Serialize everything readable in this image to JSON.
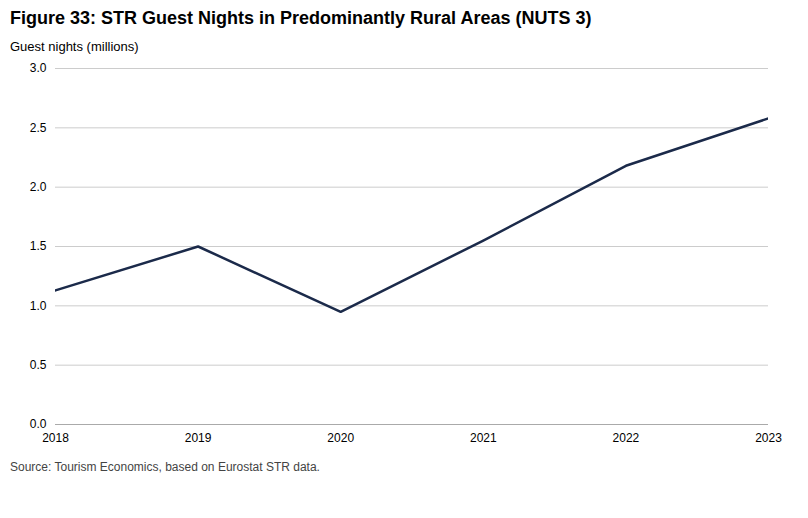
{
  "chart_data": {
    "type": "line",
    "title": "Figure 33: STR Guest Nights in Predominantly Rural Areas (NUTS 3)",
    "ylabel": "Guest nights (millions)",
    "source": "Source: Tourism Economics, based on Eurostat STR data.",
    "x": [
      2018,
      2019,
      2020,
      2021,
      2022,
      2023
    ],
    "values": [
      1.13,
      1.5,
      0.95,
      1.55,
      2.18,
      2.58
    ],
    "color": "#1b2a4a",
    "xlim": [
      2018,
      2023
    ],
    "xticks": [
      2018,
      2019,
      2020,
      2021,
      2022,
      2023
    ],
    "ylim": [
      0.0,
      3.0
    ],
    "yticks": [
      {
        "value": 0,
        "label": "0.0"
      },
      0.5,
      {
        "value": 1,
        "label": "1.0"
      },
      1.5,
      {
        "value": 2,
        "label": "2.0"
      },
      2.5,
      {
        "value": 3,
        "label": "3.0"
      }
    ],
    "grid": true
  }
}
